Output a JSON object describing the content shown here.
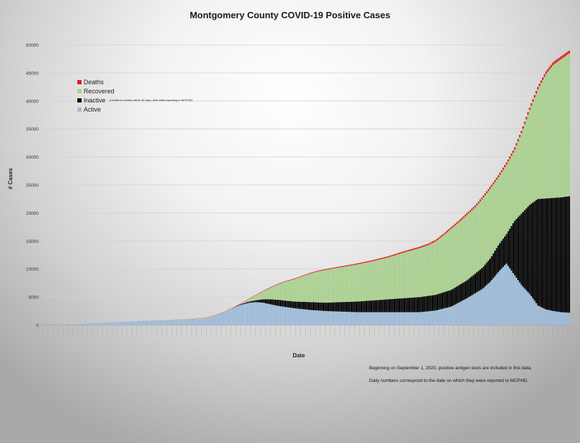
{
  "chart_data": {
    "type": "bar",
    "stacked": true,
    "title": "Montgomery County COVID-19 Positive Cases",
    "xlabel": "Date",
    "ylabel": "# Cases",
    "ylim": [
      0,
      50000
    ],
    "yticks": [
      "0",
      "5000",
      "10000",
      "15000",
      "20000",
      "25000",
      "30000",
      "35000",
      "40000",
      "45000",
      "50000"
    ],
    "grid": true,
    "legend_position": "top-left",
    "legend": [
      {
        "name": "Deaths",
        "color": "#e01b1b"
      },
      {
        "name": "Recovered",
        "color": "#a9d08e"
      },
      {
        "name": "Inactive",
        "color": "#000000",
        "note": "(Unable to contact within 30 days, after initial reporting to MCPHD)"
      },
      {
        "name": "Active",
        "color": "#9dbbd9"
      }
    ],
    "series_order": [
      "Active",
      "Inactive",
      "Recovered",
      "Deaths"
    ],
    "num_days": 320,
    "total_keypoints": [
      [
        0,
        0
      ],
      [
        10,
        40
      ],
      [
        20,
        150
      ],
      [
        30,
        300
      ],
      [
        40,
        450
      ],
      [
        50,
        580
      ],
      [
        60,
        700
      ],
      [
        70,
        780
      ],
      [
        80,
        870
      ],
      [
        90,
        1000
      ],
      [
        100,
        1200
      ],
      [
        105,
        1400
      ],
      [
        110,
        1800
      ],
      [
        115,
        2300
      ],
      [
        120,
        3000
      ],
      [
        125,
        3700
      ],
      [
        130,
        4500
      ],
      [
        135,
        5300
      ],
      [
        140,
        6100
      ],
      [
        145,
        6800
      ],
      [
        150,
        7400
      ],
      [
        155,
        7900
      ],
      [
        160,
        8300
      ],
      [
        165,
        8800
      ],
      [
        170,
        9300
      ],
      [
        175,
        9700
      ],
      [
        180,
        10000
      ],
      [
        190,
        10500
      ],
      [
        200,
        11000
      ],
      [
        210,
        11600
      ],
      [
        220,
        12300
      ],
      [
        230,
        13200
      ],
      [
        240,
        14000
      ],
      [
        245,
        14500
      ],
      [
        250,
        15200
      ],
      [
        255,
        16300
      ],
      [
        260,
        17500
      ],
      [
        265,
        18700
      ],
      [
        270,
        20000
      ],
      [
        275,
        21300
      ],
      [
        280,
        23000
      ],
      [
        285,
        24800
      ],
      [
        290,
        26800
      ],
      [
        295,
        29000
      ],
      [
        300,
        31500
      ],
      [
        305,
        35000
      ],
      [
        310,
        39000
      ],
      [
        315,
        42500
      ],
      [
        320,
        45200
      ],
      [
        325,
        47000
      ],
      [
        330,
        48000
      ],
      [
        335,
        49000
      ]
    ],
    "active_keypoints": [
      [
        0,
        0
      ],
      [
        10,
        40
      ],
      [
        20,
        150
      ],
      [
        30,
        300
      ],
      [
        40,
        450
      ],
      [
        50,
        580
      ],
      [
        60,
        700
      ],
      [
        70,
        760
      ],
      [
        80,
        800
      ],
      [
        90,
        850
      ],
      [
        100,
        1000
      ],
      [
        105,
        1250
      ],
      [
        110,
        1700
      ],
      [
        115,
        2200
      ],
      [
        120,
        2900
      ],
      [
        125,
        3500
      ],
      [
        130,
        3900
      ],
      [
        135,
        4100
      ],
      [
        140,
        4000
      ],
      [
        145,
        3700
      ],
      [
        150,
        3400
      ],
      [
        160,
        3000
      ],
      [
        170,
        2700
      ],
      [
        180,
        2500
      ],
      [
        200,
        2300
      ],
      [
        220,
        2300
      ],
      [
        240,
        2300
      ],
      [
        250,
        2600
      ],
      [
        260,
        3300
      ],
      [
        270,
        4800
      ],
      [
        280,
        6500
      ],
      [
        285,
        7800
      ],
      [
        290,
        9500
      ],
      [
        295,
        11000
      ],
      [
        300,
        9000
      ],
      [
        305,
        7000
      ],
      [
        310,
        5500
      ],
      [
        315,
        3500
      ],
      [
        320,
        2800
      ],
      [
        325,
        2500
      ],
      [
        330,
        2300
      ],
      [
        335,
        2200
      ]
    ],
    "inactive_keypoints": [
      [
        0,
        0
      ],
      [
        90,
        0
      ],
      [
        120,
        0
      ],
      [
        125,
        100
      ],
      [
        130,
        200
      ],
      [
        135,
        300
      ],
      [
        140,
        600
      ],
      [
        145,
        900
      ],
      [
        150,
        1100
      ],
      [
        160,
        1200
      ],
      [
        170,
        1400
      ],
      [
        180,
        1500
      ],
      [
        200,
        1900
      ],
      [
        220,
        2300
      ],
      [
        240,
        2700
      ],
      [
        250,
        2800
      ],
      [
        260,
        3000
      ],
      [
        270,
        3200
      ],
      [
        280,
        3800
      ],
      [
        285,
        4200
      ],
      [
        290,
        4800
      ],
      [
        295,
        5200
      ],
      [
        300,
        9500
      ],
      [
        305,
        13000
      ],
      [
        310,
        16000
      ],
      [
        315,
        19000
      ],
      [
        320,
        19800
      ],
      [
        325,
        20200
      ],
      [
        330,
        20500
      ],
      [
        335,
        20800
      ]
    ],
    "deaths_keypoints": [
      [
        0,
        0
      ],
      [
        60,
        10
      ],
      [
        90,
        30
      ],
      [
        120,
        60
      ],
      [
        150,
        100
      ],
      [
        180,
        150
      ],
      [
        210,
        200
      ],
      [
        240,
        250
      ],
      [
        270,
        320
      ],
      [
        300,
        420
      ],
      [
        335,
        520
      ]
    ],
    "notes": [
      "Beginning on September 1, 2020, positive antigen tests are included in this data.",
      "Daily numbers correspond to the date on which they were reported to MCPHD."
    ]
  }
}
